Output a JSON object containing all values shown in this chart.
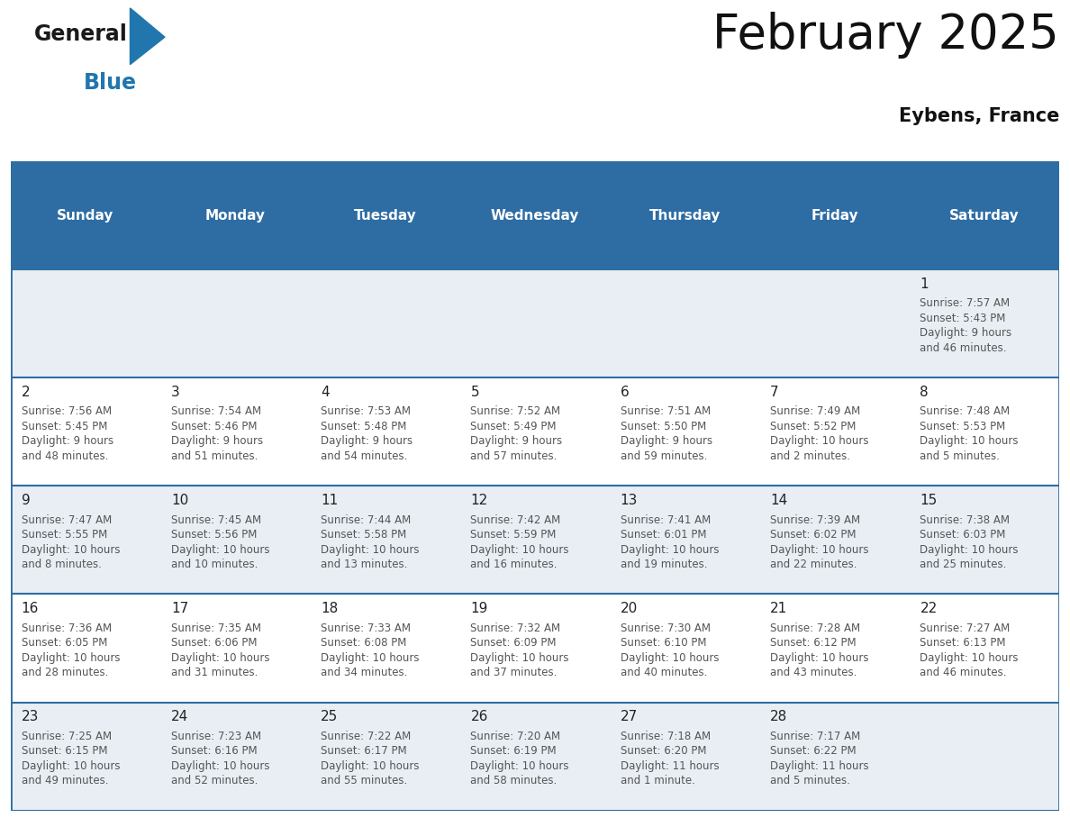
{
  "title": "February 2025",
  "subtitle": "Eybens, France",
  "header_bg_color": "#2E6DA4",
  "header_text_color": "#FFFFFF",
  "cell_bg_color": "#E8EEF4",
  "cell_bg_white": "#FFFFFF",
  "cell_text_color": "#555555",
  "day_num_color": "#222222",
  "border_color": "#2E6DA4",
  "line_color": "#3A7BBF",
  "days_of_week": [
    "Sunday",
    "Monday",
    "Tuesday",
    "Wednesday",
    "Thursday",
    "Friday",
    "Saturday"
  ],
  "calendar": [
    [
      {
        "day": "",
        "info": ""
      },
      {
        "day": "",
        "info": ""
      },
      {
        "day": "",
        "info": ""
      },
      {
        "day": "",
        "info": ""
      },
      {
        "day": "",
        "info": ""
      },
      {
        "day": "",
        "info": ""
      },
      {
        "day": "1",
        "info": "Sunrise: 7:57 AM\nSunset: 5:43 PM\nDaylight: 9 hours\nand 46 minutes."
      }
    ],
    [
      {
        "day": "2",
        "info": "Sunrise: 7:56 AM\nSunset: 5:45 PM\nDaylight: 9 hours\nand 48 minutes."
      },
      {
        "day": "3",
        "info": "Sunrise: 7:54 AM\nSunset: 5:46 PM\nDaylight: 9 hours\nand 51 minutes."
      },
      {
        "day": "4",
        "info": "Sunrise: 7:53 AM\nSunset: 5:48 PM\nDaylight: 9 hours\nand 54 minutes."
      },
      {
        "day": "5",
        "info": "Sunrise: 7:52 AM\nSunset: 5:49 PM\nDaylight: 9 hours\nand 57 minutes."
      },
      {
        "day": "6",
        "info": "Sunrise: 7:51 AM\nSunset: 5:50 PM\nDaylight: 9 hours\nand 59 minutes."
      },
      {
        "day": "7",
        "info": "Sunrise: 7:49 AM\nSunset: 5:52 PM\nDaylight: 10 hours\nand 2 minutes."
      },
      {
        "day": "8",
        "info": "Sunrise: 7:48 AM\nSunset: 5:53 PM\nDaylight: 10 hours\nand 5 minutes."
      }
    ],
    [
      {
        "day": "9",
        "info": "Sunrise: 7:47 AM\nSunset: 5:55 PM\nDaylight: 10 hours\nand 8 minutes."
      },
      {
        "day": "10",
        "info": "Sunrise: 7:45 AM\nSunset: 5:56 PM\nDaylight: 10 hours\nand 10 minutes."
      },
      {
        "day": "11",
        "info": "Sunrise: 7:44 AM\nSunset: 5:58 PM\nDaylight: 10 hours\nand 13 minutes."
      },
      {
        "day": "12",
        "info": "Sunrise: 7:42 AM\nSunset: 5:59 PM\nDaylight: 10 hours\nand 16 minutes."
      },
      {
        "day": "13",
        "info": "Sunrise: 7:41 AM\nSunset: 6:01 PM\nDaylight: 10 hours\nand 19 minutes."
      },
      {
        "day": "14",
        "info": "Sunrise: 7:39 AM\nSunset: 6:02 PM\nDaylight: 10 hours\nand 22 minutes."
      },
      {
        "day": "15",
        "info": "Sunrise: 7:38 AM\nSunset: 6:03 PM\nDaylight: 10 hours\nand 25 minutes."
      }
    ],
    [
      {
        "day": "16",
        "info": "Sunrise: 7:36 AM\nSunset: 6:05 PM\nDaylight: 10 hours\nand 28 minutes."
      },
      {
        "day": "17",
        "info": "Sunrise: 7:35 AM\nSunset: 6:06 PM\nDaylight: 10 hours\nand 31 minutes."
      },
      {
        "day": "18",
        "info": "Sunrise: 7:33 AM\nSunset: 6:08 PM\nDaylight: 10 hours\nand 34 minutes."
      },
      {
        "day": "19",
        "info": "Sunrise: 7:32 AM\nSunset: 6:09 PM\nDaylight: 10 hours\nand 37 minutes."
      },
      {
        "day": "20",
        "info": "Sunrise: 7:30 AM\nSunset: 6:10 PM\nDaylight: 10 hours\nand 40 minutes."
      },
      {
        "day": "21",
        "info": "Sunrise: 7:28 AM\nSunset: 6:12 PM\nDaylight: 10 hours\nand 43 minutes."
      },
      {
        "day": "22",
        "info": "Sunrise: 7:27 AM\nSunset: 6:13 PM\nDaylight: 10 hours\nand 46 minutes."
      }
    ],
    [
      {
        "day": "23",
        "info": "Sunrise: 7:25 AM\nSunset: 6:15 PM\nDaylight: 10 hours\nand 49 minutes."
      },
      {
        "day": "24",
        "info": "Sunrise: 7:23 AM\nSunset: 6:16 PM\nDaylight: 10 hours\nand 52 minutes."
      },
      {
        "day": "25",
        "info": "Sunrise: 7:22 AM\nSunset: 6:17 PM\nDaylight: 10 hours\nand 55 minutes."
      },
      {
        "day": "26",
        "info": "Sunrise: 7:20 AM\nSunset: 6:19 PM\nDaylight: 10 hours\nand 58 minutes."
      },
      {
        "day": "27",
        "info": "Sunrise: 7:18 AM\nSunset: 6:20 PM\nDaylight: 11 hours\nand 1 minute."
      },
      {
        "day": "28",
        "info": "Sunrise: 7:17 AM\nSunset: 6:22 PM\nDaylight: 11 hours\nand 5 minutes."
      },
      {
        "day": "",
        "info": ""
      }
    ]
  ],
  "logo_general_color": "#1a1a1a",
  "logo_blue_color": "#2176AE",
  "logo_triangle_color": "#2176AE",
  "title_fontsize": 38,
  "subtitle_fontsize": 15,
  "header_fontsize": 11,
  "day_num_fontsize": 11,
  "info_fontsize": 8.5
}
